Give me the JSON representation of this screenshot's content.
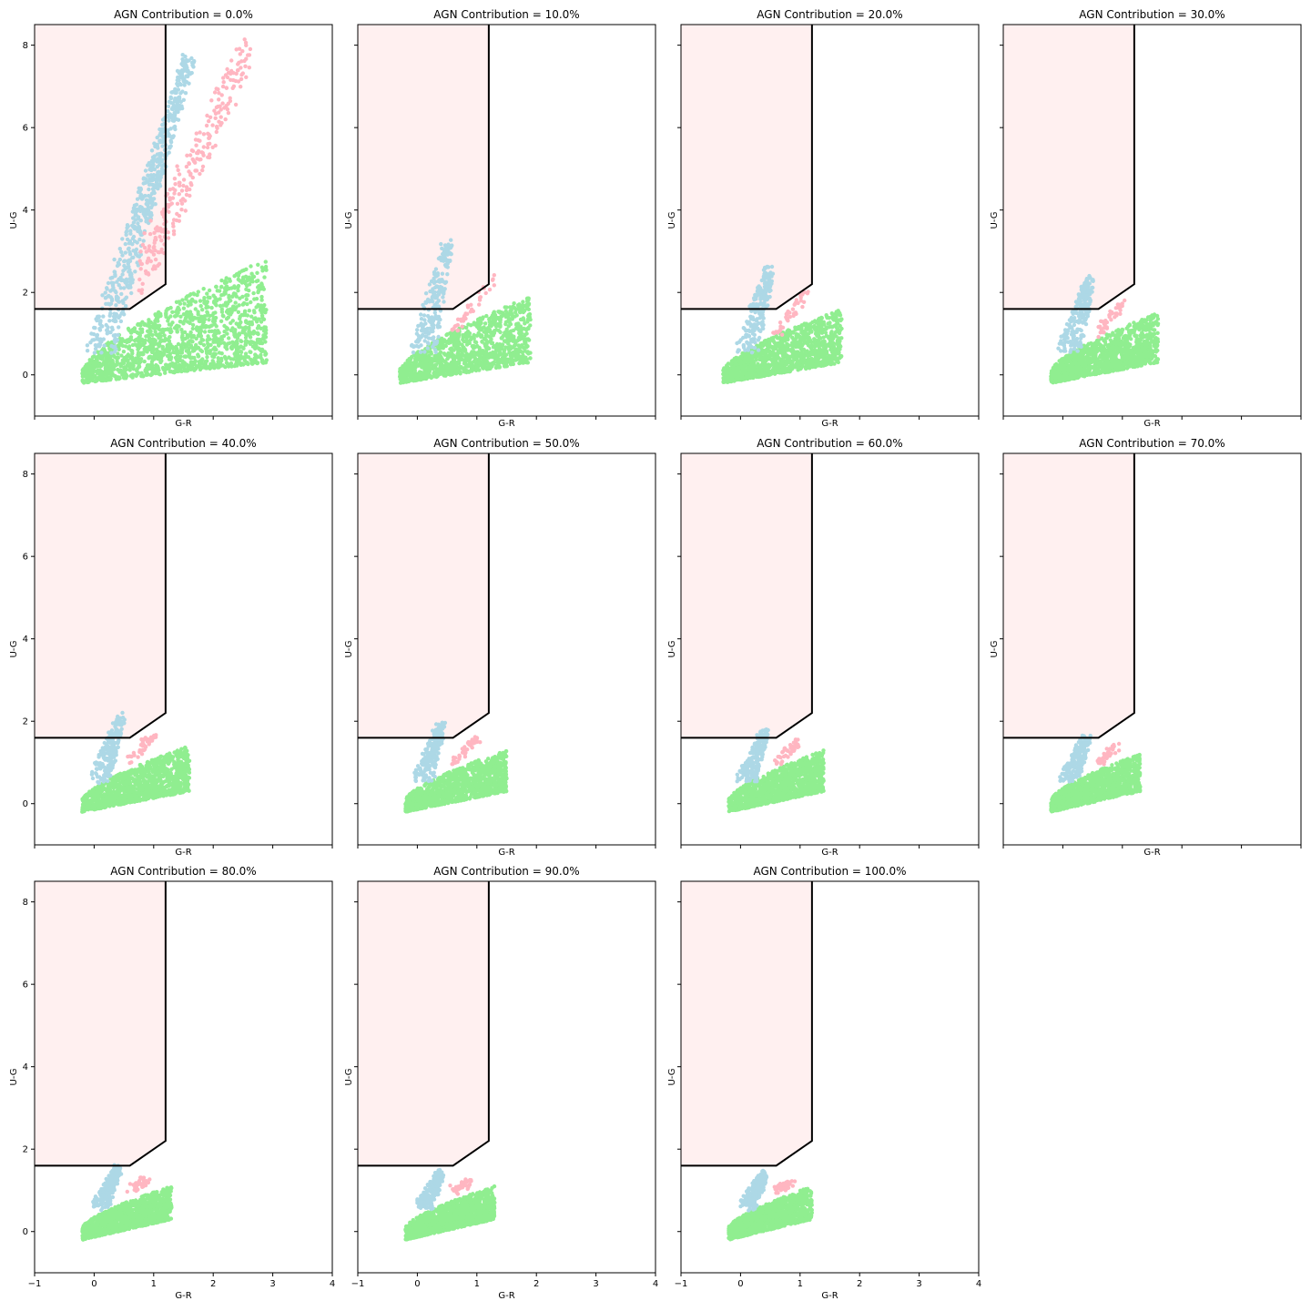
{
  "figure": {
    "xlabel": "G-R",
    "ylabel": "U-G",
    "xlim": [
      -1,
      4
    ],
    "ylim": [
      -1,
      8.5
    ],
    "xticks": [
      -1,
      0,
      1,
      2,
      3,
      4
    ],
    "yticks": [
      0,
      2,
      4,
      6,
      8
    ],
    "region_color": "#fff0f0",
    "boundary_color": "#000000",
    "boundary_points": [
      [
        -1,
        1.6
      ],
      [
        0.6,
        1.6
      ],
      [
        1.2,
        2.2
      ],
      [
        1.2,
        8.5
      ]
    ],
    "series_colors": {
      "star_forming": "#90ee90",
      "type_a": "#add8e6",
      "type_b": "#ffb6c1"
    }
  },
  "chart_data": [
    {
      "type": "scatter",
      "title": "AGN Contribution = 0.0%",
      "xlabel": "G-R",
      "ylabel": "U-G",
      "xlim": [
        -1,
        4
      ],
      "ylim": [
        -1,
        8.5
      ],
      "green": {
        "xmin": -0.2,
        "xmax": 2.9,
        "ymin": -0.2,
        "ymax": 3.1
      },
      "blue": {
        "tip": [
          1.6,
          7.7
        ],
        "width": 0.5
      },
      "pink": {
        "tip": [
          2.6,
          7.9
        ],
        "xmin": 0.8,
        "xmax": 2.6
      }
    },
    {
      "type": "scatter",
      "title": "AGN Contribution = 10.0%",
      "xlabel": "G-R",
      "ylabel": "U-G",
      "xlim": [
        -1,
        4
      ],
      "ylim": [
        -1,
        8.5
      ],
      "green": {
        "xmin": -0.3,
        "xmax": 1.9,
        "ymin": -0.2,
        "ymax": 1.9
      },
      "blue": {
        "tip": [
          0.5,
          3.2
        ],
        "width": 0.45
      },
      "pink": {
        "tip": [
          1.1,
          2.4
        ],
        "xmin": 0.6,
        "xmax": 1.3
      }
    },
    {
      "type": "scatter",
      "title": "AGN Contribution = 20.0%",
      "xlabel": "G-R",
      "ylabel": "U-G",
      "xlim": [
        -1,
        4
      ],
      "ylim": [
        -1,
        8.5
      ],
      "green": {
        "xmin": -0.3,
        "xmax": 1.7,
        "ymin": -0.2,
        "ymax": 1.6
      },
      "blue": {
        "tip": [
          0.5,
          2.6
        ],
        "width": 0.4
      },
      "pink": {
        "tip": [
          1.0,
          2.0
        ],
        "xmin": 0.6,
        "xmax": 1.1
      }
    },
    {
      "type": "scatter",
      "title": "AGN Contribution = 30.0%",
      "xlabel": "G-R",
      "ylabel": "U-G",
      "xlim": [
        -1,
        4
      ],
      "ylim": [
        -1,
        8.5
      ],
      "green": {
        "xmin": -0.2,
        "xmax": 1.6,
        "ymin": -0.2,
        "ymax": 1.5
      },
      "blue": {
        "tip": [
          0.45,
          2.3
        ],
        "width": 0.4
      },
      "pink": {
        "tip": [
          0.9,
          1.8
        ],
        "xmin": 0.6,
        "xmax": 1.0
      }
    },
    {
      "type": "scatter",
      "title": "AGN Contribution = 40.0%",
      "xlabel": "G-R",
      "ylabel": "U-G",
      "xlim": [
        -1,
        4
      ],
      "ylim": [
        -1,
        8.5
      ],
      "green": {
        "xmin": -0.2,
        "xmax": 1.6,
        "ymin": -0.2,
        "ymax": 1.4
      },
      "blue": {
        "tip": [
          0.45,
          2.1
        ],
        "width": 0.35
      },
      "pink": {
        "tip": [
          0.9,
          1.7
        ],
        "xmin": 0.6,
        "xmax": 1.0
      }
    },
    {
      "type": "scatter",
      "title": "AGN Contribution = 50.0%",
      "xlabel": "G-R",
      "ylabel": "U-G",
      "xlim": [
        -1,
        4
      ],
      "ylim": [
        -1,
        8.5
      ],
      "green": {
        "xmin": -0.2,
        "xmax": 1.5,
        "ymin": -0.2,
        "ymax": 1.3
      },
      "blue": {
        "tip": [
          0.4,
          1.9
        ],
        "width": 0.35
      },
      "pink": {
        "tip": [
          0.9,
          1.6
        ],
        "xmin": 0.6,
        "xmax": 1.0
      }
    },
    {
      "type": "scatter",
      "title": "AGN Contribution = 60.0%",
      "xlabel": "G-R",
      "ylabel": "U-G",
      "xlim": [
        -1,
        4
      ],
      "ylim": [
        -1,
        8.5
      ],
      "green": {
        "xmin": -0.2,
        "xmax": 1.4,
        "ymin": -0.2,
        "ymax": 1.3
      },
      "blue": {
        "tip": [
          0.4,
          1.7
        ],
        "width": 0.35
      },
      "pink": {
        "tip": [
          0.85,
          1.5
        ],
        "xmin": 0.6,
        "xmax": 0.95
      }
    },
    {
      "type": "scatter",
      "title": "AGN Contribution = 70.0%",
      "xlabel": "G-R",
      "ylabel": "U-G",
      "xlim": [
        -1,
        4
      ],
      "ylim": [
        -1,
        8.5
      ],
      "green": {
        "xmin": -0.2,
        "xmax": 1.3,
        "ymin": -0.2,
        "ymax": 1.2
      },
      "blue": {
        "tip": [
          0.4,
          1.6
        ],
        "width": 0.35
      },
      "pink": {
        "tip": [
          0.8,
          1.4
        ],
        "xmin": 0.6,
        "xmax": 0.9
      }
    },
    {
      "type": "scatter",
      "title": "AGN Contribution = 80.0%",
      "xlabel": "G-R",
      "ylabel": "U-G",
      "xlim": [
        -1,
        4
      ],
      "ylim": [
        -1,
        8.5
      ],
      "green": {
        "xmin": -0.2,
        "xmax": 1.3,
        "ymin": -0.2,
        "ymax": 1.1
      },
      "blue": {
        "tip": [
          0.4,
          1.5
        ],
        "width": 0.3
      },
      "pink": {
        "tip": [
          0.8,
          1.3
        ],
        "xmin": 0.6,
        "xmax": 0.9
      }
    },
    {
      "type": "scatter",
      "title": "AGN Contribution = 90.0%",
      "xlabel": "G-R",
      "ylabel": "U-G",
      "xlim": [
        -1,
        4
      ],
      "ylim": [
        -1,
        8.5
      ],
      "green": {
        "xmin": -0.2,
        "xmax": 1.3,
        "ymin": -0.2,
        "ymax": 1.1
      },
      "blue": {
        "tip": [
          0.4,
          1.4
        ],
        "width": 0.3
      },
      "pink": {
        "tip": [
          0.8,
          1.2
        ],
        "xmin": 0.6,
        "xmax": 0.9
      }
    },
    {
      "type": "scatter",
      "title": "AGN Contribution = 100.0%",
      "xlabel": "G-R",
      "ylabel": "U-G",
      "xlim": [
        -1,
        4
      ],
      "ylim": [
        -1,
        8.5
      ],
      "green": {
        "xmin": -0.2,
        "xmax": 1.2,
        "ymin": -0.2,
        "ymax": 1.1
      },
      "blue": {
        "tip": [
          0.4,
          1.4
        ],
        "width": 0.3
      },
      "pink": {
        "tip": [
          0.8,
          1.2
        ],
        "xmin": 0.6,
        "xmax": 0.9
      }
    }
  ]
}
